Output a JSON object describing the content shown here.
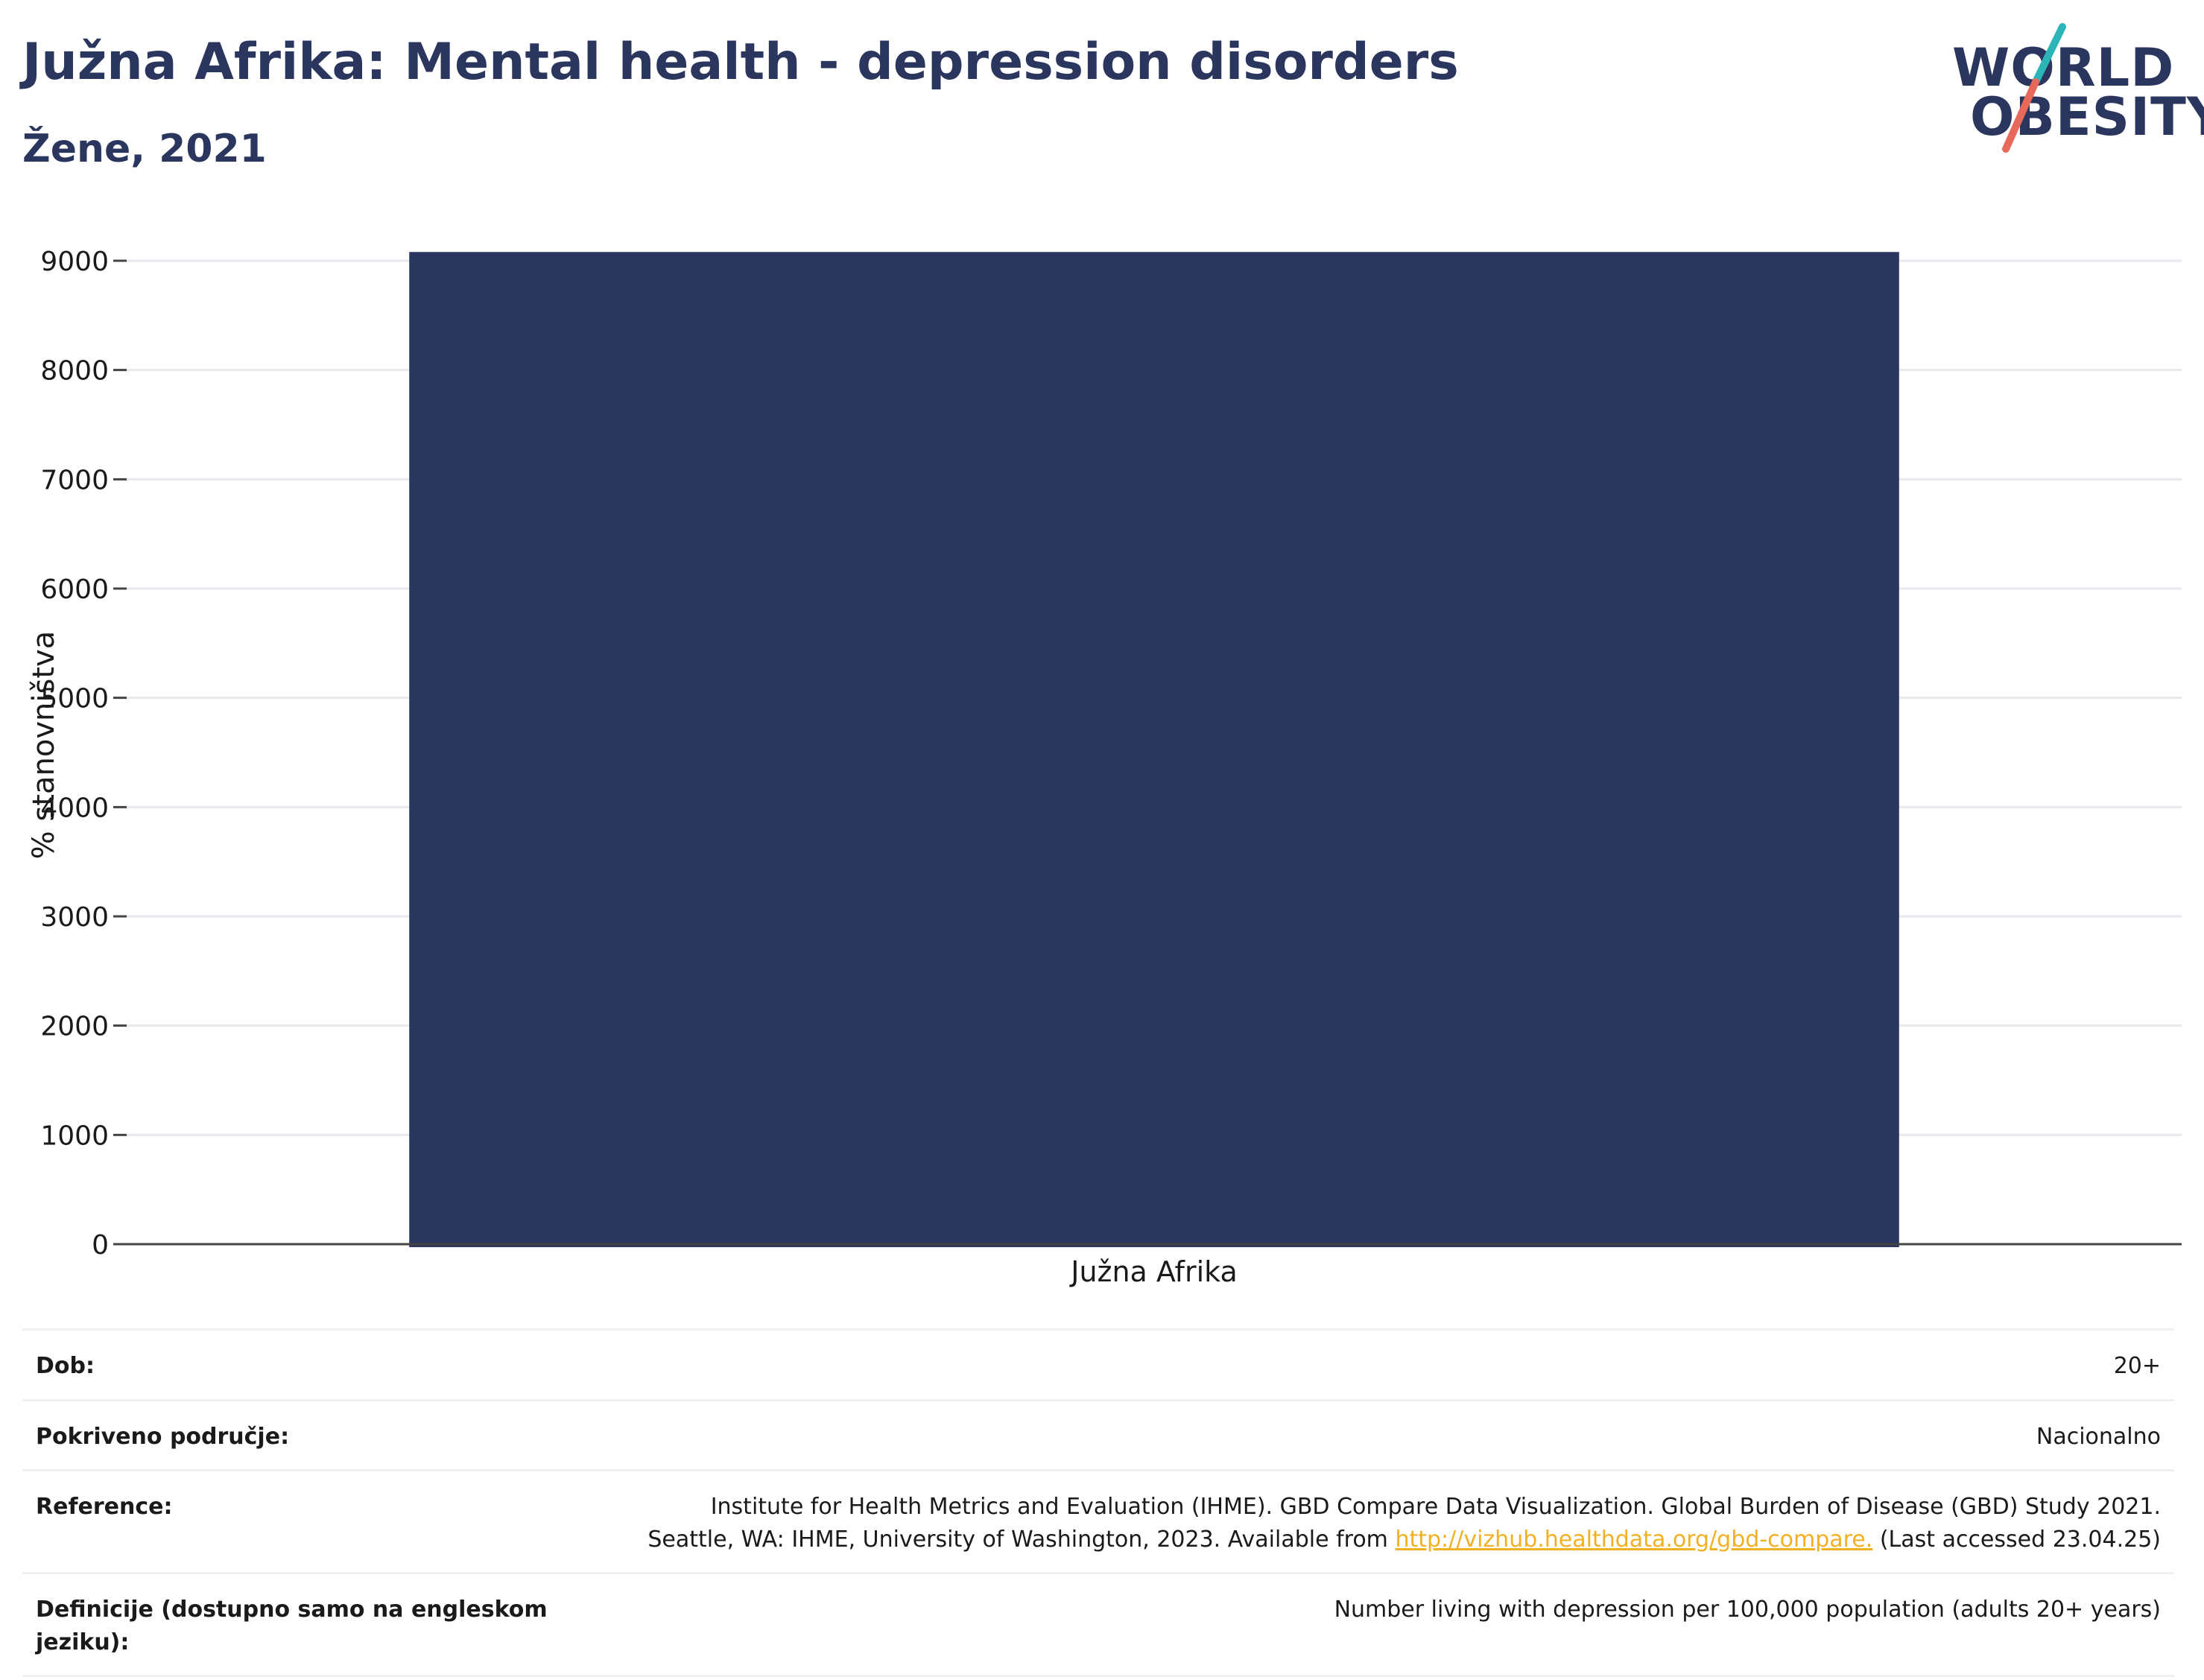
{
  "header": {
    "title": "Južna Afrika: Mental health - depression disorders",
    "subtitle": "Žene, 2021"
  },
  "logo": {
    "line1": "WORLD",
    "line2": "OBESITY",
    "accent_colors": [
      "#2bb5b8",
      "#e8695a"
    ]
  },
  "chart_data": {
    "type": "bar",
    "categories": [
      "Južna Afrika"
    ],
    "values": [
      9080
    ],
    "ylabel": "% stanovništva",
    "ylim": [
      0,
      9000
    ],
    "yticks": [
      0,
      1000,
      2000,
      3000,
      4000,
      5000,
      6000,
      7000,
      8000,
      9000
    ],
    "grid": true,
    "bar_color": "#2b365f"
  },
  "meta": {
    "rows": [
      {
        "label": "Dob:",
        "value": "20+"
      },
      {
        "label": "Pokriveno područje:",
        "value": "Nacionalno"
      },
      {
        "label": "Reference:",
        "value_line1": "Institute for Health Metrics and Evaluation (IHME). GBD Compare Data Visualization. Global Burden of Disease (GBD) Study 2021.",
        "value_line2_pre": "Seattle, WA: IHME, University of Washington, 2023. Available from ",
        "link": "http://vizhub.healthdata.org/gbd-compare.",
        "value_line2_post": " (Last accessed 23.04.25)"
      },
      {
        "label": "Definicije (dostupno samo na engleskom jeziku):",
        "value": "Number living with depression per 100,000 population (adults 20+ years)"
      }
    ]
  }
}
